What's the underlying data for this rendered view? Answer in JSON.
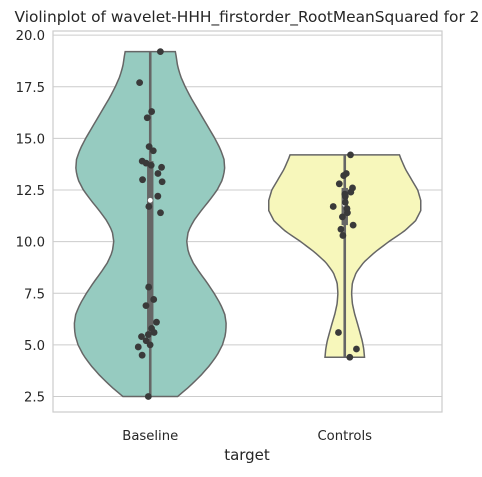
{
  "chart_data": {
    "type": "violin",
    "title": "Violinplot of wavelet-HHH_firstorder_RootMeanSquared for 2",
    "xlabel": "target",
    "ylabel": "",
    "categories": [
      "Baseline",
      "Controls"
    ],
    "ylim": [
      1.75,
      20.2
    ],
    "yticks": [
      "2.5",
      "5.0",
      "7.5",
      "10.0",
      "12.5",
      "15.0",
      "17.5",
      "20.0"
    ],
    "grid": "horizontal",
    "violin_colors": [
      "#96cbc0",
      "#f7f7bb"
    ],
    "outline_color": "#666666",
    "point_color": "#3a3a3a",
    "violins": [
      {
        "category": "Baseline",
        "min": 2.5,
        "max": 19.2,
        "q1": 5.5,
        "median": 12.0,
        "q3": 13.9,
        "density_profile": [
          [
            2.5,
            0.36
          ],
          [
            3.0,
            0.52
          ],
          [
            3.5,
            0.66
          ],
          [
            4.0,
            0.78
          ],
          [
            4.5,
            0.88
          ],
          [
            5.0,
            0.95
          ],
          [
            5.5,
            0.99
          ],
          [
            6.0,
            1.0
          ],
          [
            6.5,
            0.98
          ],
          [
            7.0,
            0.92
          ],
          [
            7.5,
            0.84
          ],
          [
            8.0,
            0.75
          ],
          [
            8.5,
            0.65
          ],
          [
            9.0,
            0.56
          ],
          [
            9.5,
            0.5
          ],
          [
            10.0,
            0.48
          ],
          [
            10.5,
            0.5
          ],
          [
            11.0,
            0.57
          ],
          [
            11.5,
            0.67
          ],
          [
            12.0,
            0.78
          ],
          [
            12.5,
            0.88
          ],
          [
            13.0,
            0.95
          ],
          [
            13.5,
            0.98
          ],
          [
            14.0,
            0.97
          ],
          [
            14.5,
            0.92
          ],
          [
            15.0,
            0.85
          ],
          [
            15.5,
            0.77
          ],
          [
            16.0,
            0.69
          ],
          [
            16.5,
            0.61
          ],
          [
            17.0,
            0.53
          ],
          [
            17.5,
            0.46
          ],
          [
            18.0,
            0.4
          ],
          [
            18.5,
            0.36
          ],
          [
            19.0,
            0.34
          ],
          [
            19.2,
            0.33
          ]
        ],
        "points": [
          19.2,
          17.7,
          16.3,
          16.0,
          14.6,
          14.4,
          13.9,
          13.8,
          13.7,
          13.6,
          13.3,
          13.0,
          12.9,
          12.2,
          11.7,
          11.4,
          7.8,
          7.2,
          6.9,
          6.1,
          5.8,
          5.6,
          5.5,
          5.4,
          5.2,
          5.0,
          4.9,
          4.5,
          2.5
        ]
      },
      {
        "category": "Controls",
        "min": 4.4,
        "max": 14.2,
        "q1": 10.8,
        "median": 11.8,
        "q3": 12.6,
        "density_profile": [
          [
            4.4,
            0.26
          ],
          [
            4.8,
            0.25
          ],
          [
            5.2,
            0.23
          ],
          [
            5.6,
            0.2
          ],
          [
            6.0,
            0.17
          ],
          [
            6.5,
            0.13
          ],
          [
            7.0,
            0.1
          ],
          [
            7.5,
            0.09
          ],
          [
            8.0,
            0.1
          ],
          [
            8.5,
            0.15
          ],
          [
            9.0,
            0.25
          ],
          [
            9.5,
            0.4
          ],
          [
            10.0,
            0.58
          ],
          [
            10.5,
            0.78
          ],
          [
            11.0,
            0.93
          ],
          [
            11.5,
            1.0
          ],
          [
            12.0,
            1.0
          ],
          [
            12.5,
            0.96
          ],
          [
            13.0,
            0.88
          ],
          [
            13.5,
            0.8
          ],
          [
            14.0,
            0.74
          ],
          [
            14.2,
            0.72
          ]
        ],
        "points": [
          14.2,
          13.3,
          13.2,
          12.8,
          12.6,
          12.4,
          12.3,
          12.2,
          11.9,
          11.7,
          11.6,
          11.4,
          11.2,
          10.8,
          10.6,
          10.3,
          5.6,
          4.8,
          4.4
        ]
      }
    ]
  }
}
